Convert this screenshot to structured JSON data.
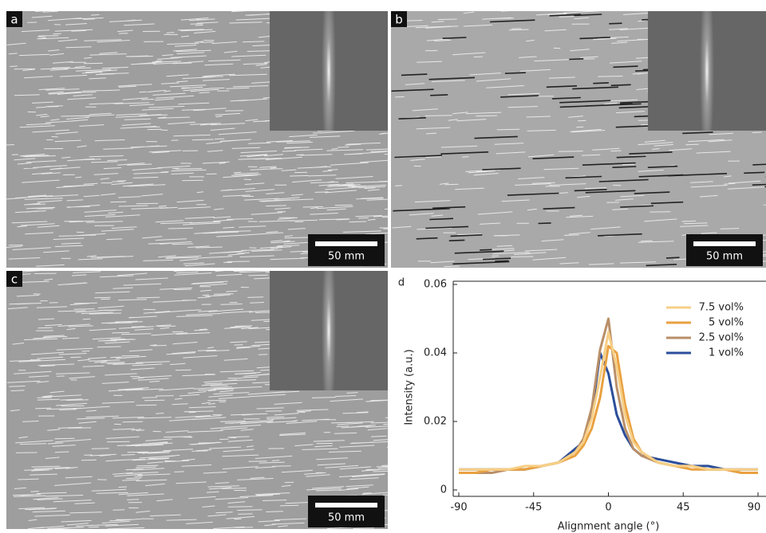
{
  "panels": [
    {
      "label": "a",
      "scale_bar": "50 mm"
    },
    {
      "label": "b",
      "scale_bar": "50 mm"
    },
    {
      "label": "c",
      "scale_bar": "50 mm"
    }
  ],
  "chart_data": {
    "type": "line",
    "panel_label": "d",
    "x_label": "Alignment angle (°)",
    "y_label": "Intensity (a.u.)",
    "x": [
      -90,
      -80,
      -70,
      -60,
      -50,
      -40,
      -30,
      -20,
      -15,
      -10,
      -5,
      0,
      5,
      10,
      15,
      20,
      30,
      40,
      50,
      60,
      70,
      80,
      90
    ],
    "xlim": [
      -90,
      90
    ],
    "xticks": [
      -90,
      -45,
      0,
      45,
      90
    ],
    "ylim": [
      0,
      0.06
    ],
    "yticks": [
      0,
      0.02,
      0.04,
      0.06
    ],
    "legend": "upper right",
    "series": [
      {
        "name": "7.5 vol%",
        "color": "#f7cf85",
        "values": [
          0.006,
          0.006,
          0.006,
          0.006,
          0.007,
          0.007,
          0.008,
          0.011,
          0.014,
          0.021,
          0.033,
          0.046,
          0.036,
          0.022,
          0.014,
          0.011,
          0.008,
          0.007,
          0.007,
          0.006,
          0.006,
          0.006,
          0.006
        ]
      },
      {
        "name": "5 vol%",
        "color": "#e9a141",
        "values": [
          0.005,
          0.005,
          0.006,
          0.006,
          0.006,
          0.007,
          0.008,
          0.01,
          0.013,
          0.018,
          0.027,
          0.042,
          0.04,
          0.025,
          0.015,
          0.011,
          0.008,
          0.007,
          0.006,
          0.006,
          0.006,
          0.005,
          0.005
        ]
      },
      {
        "name": "2.5 vol%",
        "color": "#b98f68",
        "values": [
          0.005,
          0.005,
          0.005,
          0.006,
          0.006,
          0.007,
          0.008,
          0.011,
          0.015,
          0.024,
          0.041,
          0.05,
          0.03,
          0.018,
          0.012,
          0.01,
          0.008,
          0.007,
          0.007,
          0.006,
          0.006,
          0.005,
          0.005
        ]
      },
      {
        "name": "1 vol%",
        "color": "#2b4e9b",
        "values": [
          0.006,
          0.006,
          0.006,
          0.006,
          0.006,
          0.007,
          0.008,
          0.012,
          0.014,
          0.022,
          0.04,
          0.034,
          0.022,
          0.016,
          0.012,
          0.01,
          0.009,
          0.008,
          0.007,
          0.007,
          0.006,
          0.006,
          0.006
        ]
      }
    ]
  }
}
